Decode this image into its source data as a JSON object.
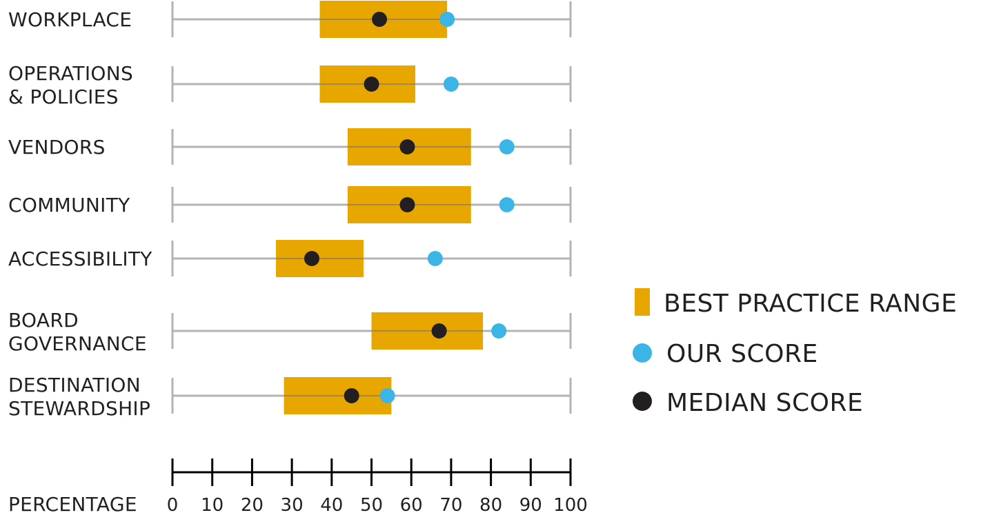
{
  "chart_data": {
    "type": "range-dot",
    "categories": [
      [
        "WORKPLACE"
      ],
      [
        "OPERATIONS",
        "& POLICIES"
      ],
      [
        "VENDORS"
      ],
      [
        "COMMUNITY"
      ],
      [
        "ACCESSIBILITY"
      ],
      [
        "BOARD",
        "GOVERNANCE"
      ],
      [
        "DESTINATION",
        "STEWARDSHIP"
      ]
    ],
    "best_practice_range": [
      [
        37,
        69
      ],
      [
        37,
        61
      ],
      [
        44,
        75
      ],
      [
        44,
        75
      ],
      [
        26,
        48
      ],
      [
        50,
        78
      ],
      [
        28,
        55
      ]
    ],
    "our_score": [
      69,
      70,
      84,
      84,
      66,
      82,
      54
    ],
    "median_score": [
      52,
      50,
      59,
      59,
      35,
      67,
      45
    ],
    "xlim": [
      0,
      100
    ],
    "xticks": [
      "0",
      "10",
      "20",
      "30",
      "40",
      "50",
      "60",
      "70",
      "80",
      "90",
      "100"
    ],
    "xlabel": "PERCENTAGE",
    "legend": {
      "position": "right",
      "range_label": "BEST PRACTICE RANGE",
      "our_label": "OUR SCORE",
      "median_label": "MEDIAN SCORE"
    },
    "colors": {
      "range": "#E8A600",
      "our": "#3AB5E6",
      "median": "#231F20",
      "line": "#b3b3b3",
      "axis": "#000000"
    }
  }
}
